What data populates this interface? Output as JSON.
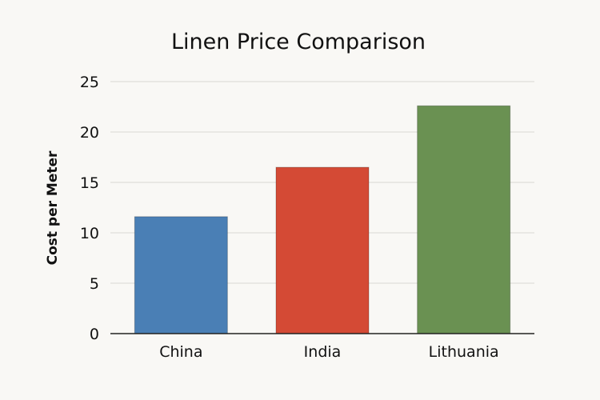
{
  "chart_data": {
    "type": "bar",
    "title": "Linen Price Comparison",
    "xlabel": "",
    "ylabel": "Cost per Meter",
    "categories": [
      "China",
      "India",
      "Lithuania"
    ],
    "values": [
      11.6,
      16.5,
      22.6
    ],
    "colors": [
      "#4a7fb5",
      "#d44a35",
      "#6a9152"
    ],
    "ylim": [
      0,
      25
    ],
    "yticks": [
      0,
      5,
      10,
      15,
      20,
      25
    ],
    "ytick_labels": [
      "0",
      "5",
      "10",
      "15",
      "20",
      "25"
    ],
    "grid": true,
    "legend": "none"
  }
}
